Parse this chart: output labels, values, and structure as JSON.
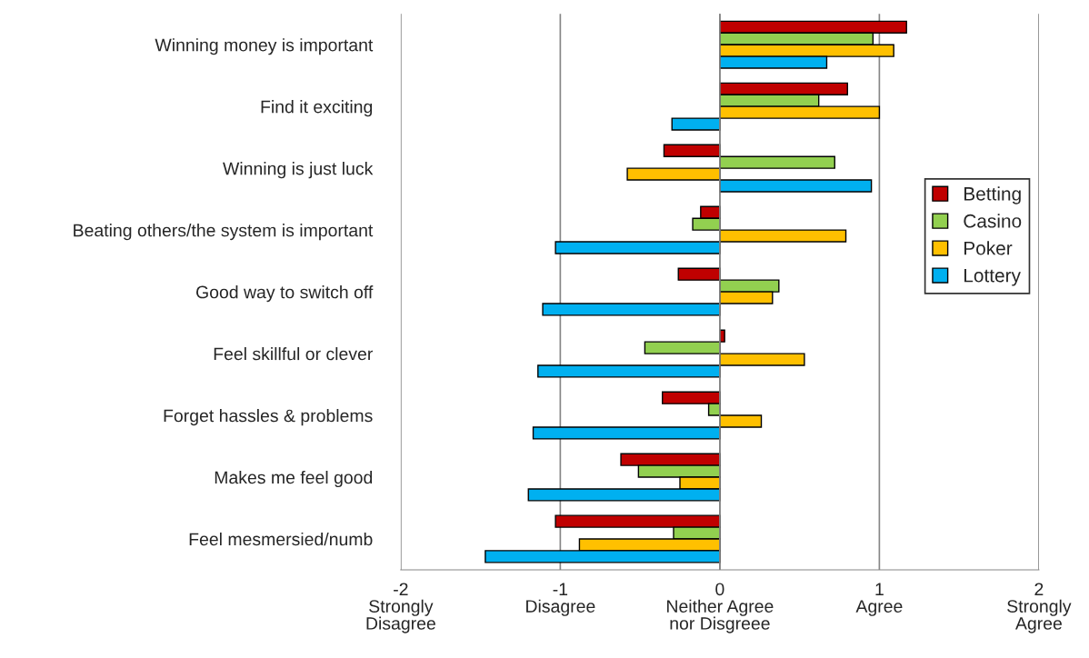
{
  "chart_data": {
    "type": "bar",
    "orientation": "horizontal",
    "categories": [
      "Winning money is important",
      "Find it exciting",
      "Winning is just luck",
      "Beating others/the system is important",
      "Good way to switch off",
      "Feel skillful or clever",
      "Forget hassles & problems",
      "Makes me feel good",
      "Feel mesmersied/numb"
    ],
    "series": [
      {
        "name": "Betting",
        "color": "#c00000",
        "values": [
          1.17,
          0.8,
          -0.35,
          -0.12,
          -0.26,
          0.03,
          -0.36,
          -0.62,
          -1.03
        ]
      },
      {
        "name": "Casino",
        "color": "#92d050",
        "values": [
          0.96,
          0.62,
          0.72,
          -0.17,
          0.37,
          -0.47,
          -0.07,
          -0.51,
          -0.29
        ]
      },
      {
        "name": "Poker",
        "color": "#ffc000",
        "values": [
          1.09,
          1.0,
          -0.58,
          0.79,
          0.33,
          0.53,
          0.26,
          -0.25,
          -0.88
        ]
      },
      {
        "name": "Lottery",
        "color": "#00b0f0",
        "values": [
          0.67,
          -0.3,
          0.95,
          -1.03,
          -1.11,
          -1.14,
          -1.17,
          -1.2,
          -1.47
        ]
      }
    ],
    "xlim": [
      -2,
      2
    ],
    "xticks": [
      {
        "value": -2,
        "label": "-2\nStrongly\nDisagree"
      },
      {
        "value": -1,
        "label": "-1\nDisagree"
      },
      {
        "value": 0,
        "label": "0\nNeither Agree\nnor Disgreee"
      },
      {
        "value": 1,
        "label": "1\nAgree"
      },
      {
        "value": 2,
        "label": "2\nStrongly\nAgree"
      }
    ],
    "grid": "x",
    "legend": "right"
  }
}
